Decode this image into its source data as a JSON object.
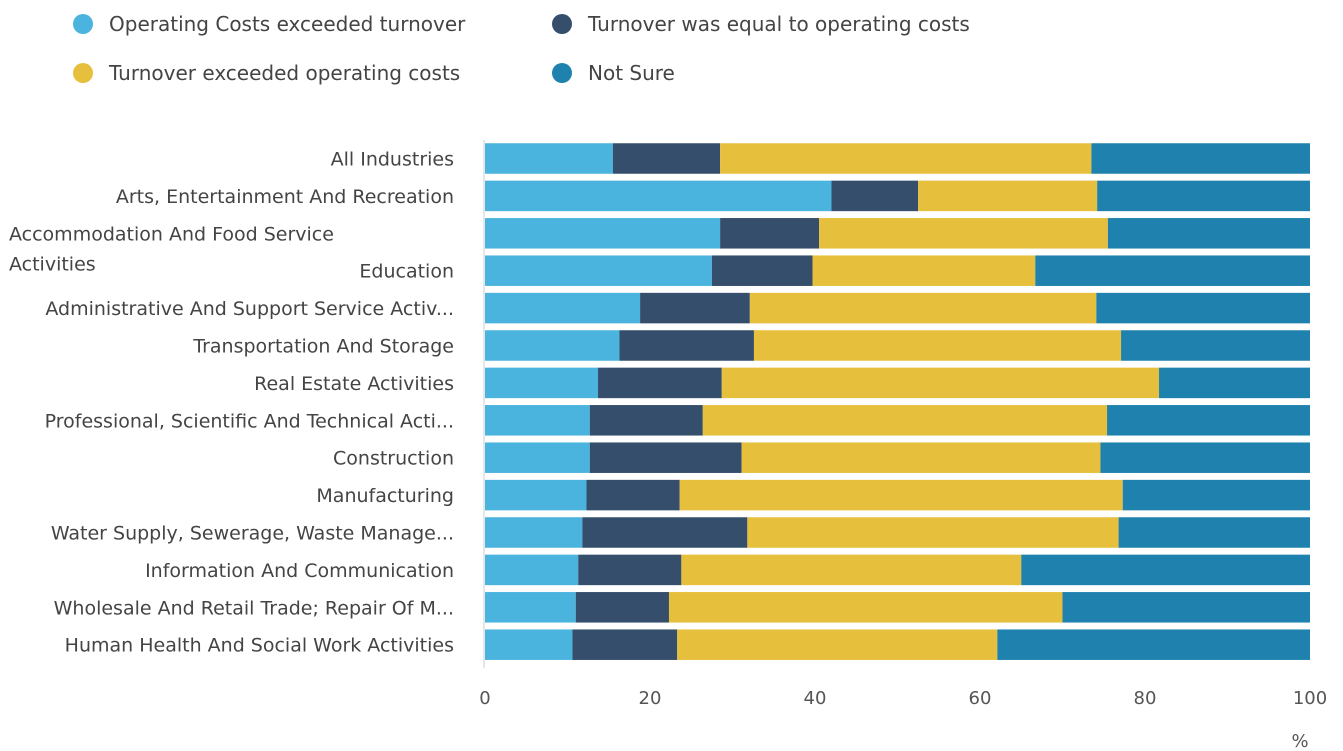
{
  "chart_data": {
    "type": "bar",
    "orientation": "horizontal",
    "stacked": true,
    "unit": "%",
    "xlim": [
      0,
      100
    ],
    "xticks": [
      0,
      20,
      40,
      60,
      80,
      100
    ],
    "grid": false,
    "legend_position": "top-left",
    "categories": [
      "All Industries",
      "Arts, Entertainment And Recreation",
      "Accommodation And Food Service Activities",
      "Education",
      "Administrative And Support Service Activ...",
      "Transportation And Storage",
      "Real Estate Activities",
      "Professional, Scientific And Technical Acti...",
      "Construction",
      "Manufacturing",
      "Water Supply, Sewerage, Waste Manage...",
      "Information And Communication",
      "Wholesale And Retail Trade; Repair Of M...",
      "Human Health And Social Work Activities"
    ],
    "series": [
      {
        "name": "Operating Costs exceeded turnover",
        "color": "#4bb4de",
        "values": [
          15.5,
          42,
          28.5,
          27.5,
          18.8,
          16.3,
          13.7,
          12.7,
          12.7,
          12.3,
          11.8,
          11.3,
          11,
          10.6
        ]
      },
      {
        "name": "Turnover was equal to operating costs",
        "color": "#344e6c",
        "values": [
          13,
          10.5,
          12,
          12.2,
          13.3,
          16.3,
          15,
          13.7,
          18.4,
          11.3,
          20,
          12.5,
          11.3,
          12.7
        ]
      },
      {
        "name": "Turnover exceeded operating costs",
        "color": "#e6bf3c",
        "values": [
          45,
          21.7,
          35,
          27,
          42,
          44.5,
          53,
          49,
          43.5,
          53.7,
          45,
          41.2,
          47.7,
          38.8
        ]
      },
      {
        "name": "Not Sure",
        "color": "#1f82ae",
        "values": [
          26.5,
          25.8,
          24.5,
          33.3,
          25.9,
          22.9,
          18.3,
          24.6,
          25.4,
          22.7,
          23.2,
          35,
          30,
          37.9
        ]
      }
    ]
  }
}
